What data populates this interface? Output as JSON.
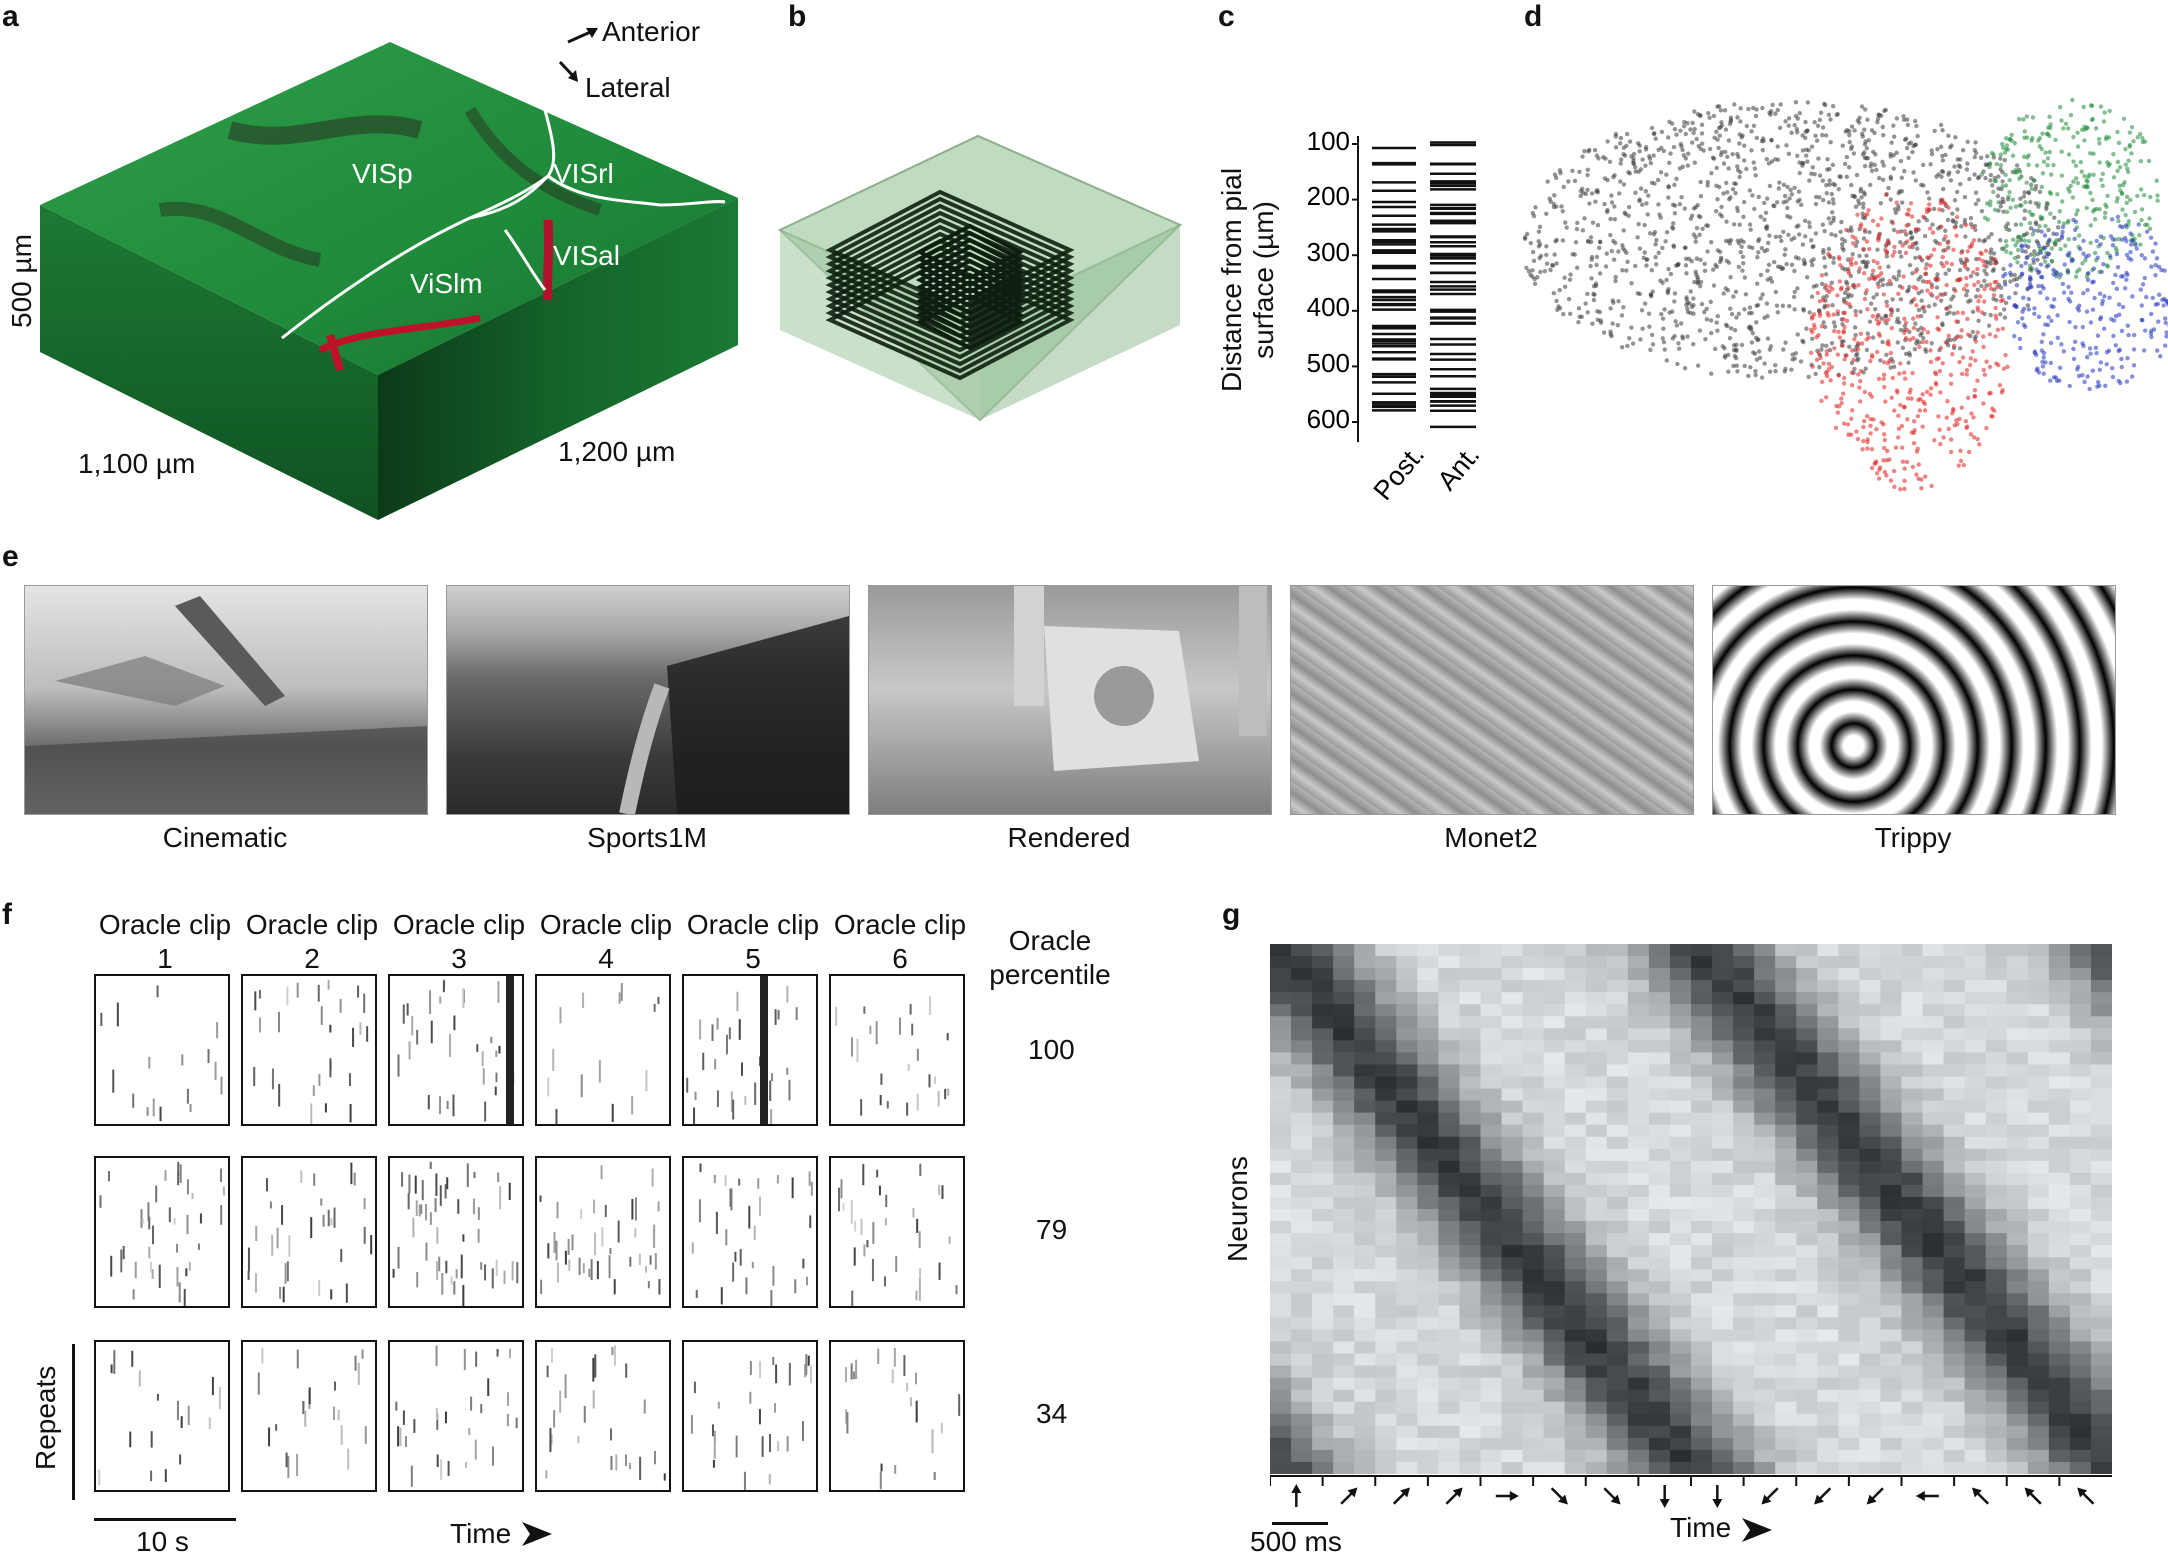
{
  "panels": {
    "a": {
      "letter": "a",
      "compass": {
        "anterior": "Anterior",
        "lateral": "Lateral"
      },
      "areas": [
        "VISp",
        "VISrl",
        "VISal",
        "ViSlm"
      ],
      "dims": {
        "depth": "500 µm",
        "x": "1,100 µm",
        "y": "1,200 µm"
      },
      "colors": {
        "tissue": "#1f8a3a",
        "vessels": "#b0112b",
        "borders": "#ffffff"
      }
    },
    "b": {
      "letter": "b"
    },
    "c": {
      "letter": "c",
      "ylabel_line1": "Distance from pial",
      "ylabel_line2": "surface (µm)",
      "ticks": [
        "100",
        "200",
        "300",
        "400",
        "500",
        "600"
      ],
      "categories": [
        "Post.",
        "Ant."
      ]
    },
    "d": {
      "letter": "d",
      "colors": [
        "#3a3a3a",
        "#e02020",
        "#1f8a3a",
        "#2233bb"
      ]
    },
    "e": {
      "letter": "e",
      "stimuli": [
        "Cinematic",
        "Sports1M",
        "Rendered",
        "Monet2",
        "Trippy"
      ]
    },
    "f": {
      "letter": "f",
      "clip_word": "Oracle clip",
      "clips": [
        "1",
        "2",
        "3",
        "4",
        "5",
        "6"
      ],
      "oracle_line1": "Oracle",
      "oracle_line2": "percentile",
      "percentiles": [
        "100",
        "79",
        "34"
      ],
      "repeats_label": "Repeats",
      "scale_label": "10 s",
      "time_label": "Time"
    },
    "g": {
      "letter": "g",
      "ylabel": "Neurons",
      "scale_label": "500 ms",
      "time_label": "Time",
      "direction_icons": [
        "arrow-up",
        "arrow-up-right",
        "arrow-up-right",
        "arrow-up-right",
        "arrow-right",
        "arrow-down-right",
        "arrow-down-right",
        "arrow-down",
        "arrow-down",
        "arrow-down-left",
        "arrow-down-left",
        "arrow-down-left",
        "arrow-left",
        "arrow-up-left",
        "arrow-up-left",
        "arrow-up-left"
      ]
    }
  }
}
